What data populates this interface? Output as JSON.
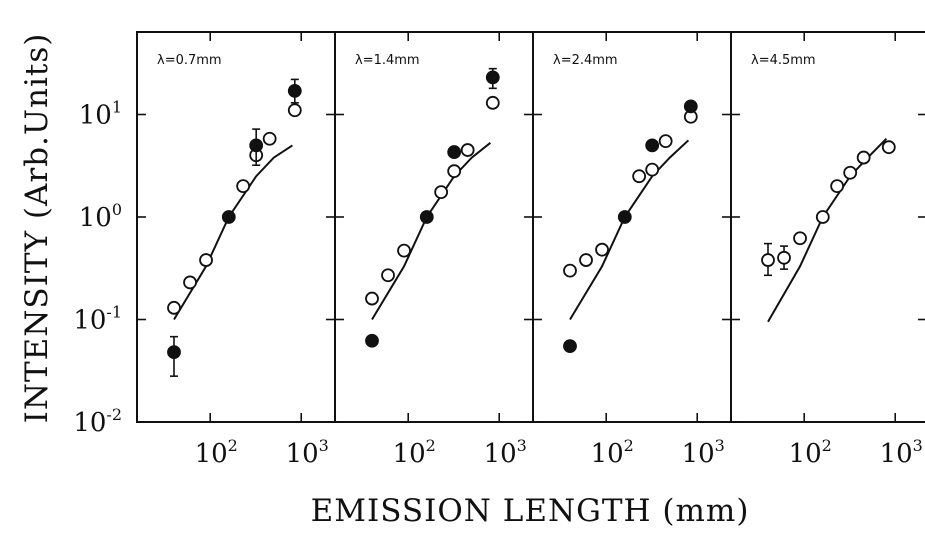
{
  "chart_data": {
    "type": "scatter",
    "ylabel": "INTENSITY (Arb.Units)",
    "xlabel": "EMISSION LENGTH (mm)",
    "yscale": "log",
    "xscale": "log",
    "ylim": [
      0.01,
      40
    ],
    "xlim": [
      20,
      1300
    ],
    "yticks": [
      {
        "value": 0.01,
        "base": "10",
        "exp": "-2"
      },
      {
        "value": 0.1,
        "base": "10",
        "exp": "-1"
      },
      {
        "value": 1,
        "base": "10",
        "exp": "0"
      },
      {
        "value": 10,
        "base": "10",
        "exp": "1"
      }
    ],
    "xticks": [
      {
        "value": 100,
        "base": "10",
        "exp": "2"
      },
      {
        "value": 1000,
        "base": "10",
        "exp": "3"
      }
    ],
    "grid": false,
    "panels": [
      {
        "label": "λ=0.7mm",
        "open_points": [
          [
            40,
            0.13
          ],
          [
            60,
            0.23
          ],
          [
            90,
            0.38
          ],
          [
            230,
            2.0
          ],
          [
            320,
            4.0
          ],
          [
            450,
            5.8
          ],
          [
            850,
            11.0
          ]
        ],
        "filled_points": [
          [
            40,
            0.048,
            0.028,
            0.068
          ],
          [
            160,
            1.0,
            null,
            null
          ],
          [
            320,
            5.0,
            3.2,
            7.2
          ],
          [
            850,
            17.0,
            13.0,
            22.0
          ]
        ],
        "model_curve": [
          [
            40,
            0.1
          ],
          [
            90,
            0.33
          ],
          [
            160,
            1.0
          ],
          [
            320,
            2.5
          ],
          [
            500,
            3.8
          ],
          [
            800,
            5.0
          ]
        ]
      },
      {
        "label": "λ=1.4mm",
        "open_points": [
          [
            40,
            0.16
          ],
          [
            60,
            0.27
          ],
          [
            90,
            0.47
          ],
          [
            230,
            1.75
          ],
          [
            320,
            2.8
          ],
          [
            450,
            4.5
          ],
          [
            850,
            13.0
          ]
        ],
        "filled_points": [
          [
            40,
            0.062,
            null,
            null
          ],
          [
            160,
            1.0,
            null,
            null
          ],
          [
            320,
            4.3,
            null,
            null
          ],
          [
            850,
            23.0,
            18.0,
            28.0
          ]
        ],
        "model_curve": [
          [
            40,
            0.1
          ],
          [
            90,
            0.33
          ],
          [
            160,
            1.0
          ],
          [
            320,
            2.5
          ],
          [
            500,
            3.8
          ],
          [
            800,
            5.3
          ]
        ]
      },
      {
        "label": "λ=2.4mm",
        "open_points": [
          [
            40,
            0.3
          ],
          [
            60,
            0.38
          ],
          [
            90,
            0.48
          ],
          [
            230,
            2.5
          ],
          [
            320,
            2.9
          ],
          [
            450,
            5.5
          ],
          [
            850,
            9.5
          ]
        ],
        "filled_points": [
          [
            40,
            0.055,
            null,
            null
          ],
          [
            160,
            1.0,
            null,
            null
          ],
          [
            320,
            5.0,
            null,
            null
          ],
          [
            850,
            12.0,
            null,
            null
          ]
        ],
        "model_curve": [
          [
            40,
            0.1
          ],
          [
            90,
            0.33
          ],
          [
            160,
            1.0
          ],
          [
            320,
            2.5
          ],
          [
            500,
            3.8
          ],
          [
            800,
            5.6
          ]
        ]
      },
      {
        "label": "λ=4.5mm",
        "open_points": [
          [
            40,
            0.38,
            0.27,
            0.55
          ],
          [
            60,
            0.4,
            0.31,
            0.52
          ],
          [
            90,
            0.62,
            null,
            null
          ],
          [
            160,
            1.0,
            null,
            null
          ],
          [
            230,
            2.0,
            null,
            null
          ],
          [
            320,
            2.7,
            null,
            null
          ],
          [
            450,
            3.8,
            null,
            null
          ],
          [
            850,
            4.8,
            null,
            null
          ]
        ],
        "filled_points": [],
        "model_curve": [
          [
            40,
            0.095
          ],
          [
            90,
            0.33
          ],
          [
            160,
            1.0
          ],
          [
            320,
            2.5
          ],
          [
            500,
            3.8
          ],
          [
            800,
            5.8
          ]
        ]
      }
    ]
  }
}
